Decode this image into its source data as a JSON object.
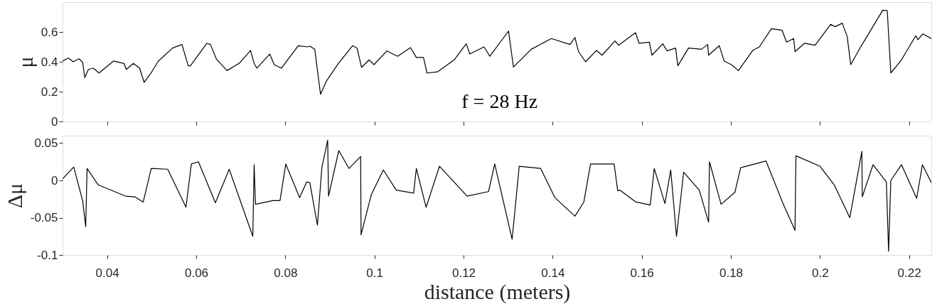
{
  "chart_data": [
    {
      "type": "line",
      "ylabel": "μ",
      "annotations": [
        "f = 28 Hz"
      ],
      "xlim": [
        0.03,
        0.225
      ],
      "xticks": [
        0.04,
        0.06,
        0.08,
        0.1,
        0.12,
        0.14,
        0.16,
        0.18,
        0.2,
        0.22
      ],
      "ylim": [
        0,
        0.8
      ],
      "yticks": [
        0,
        0.2,
        0.4,
        0.6
      ],
      "tick_labels": "y",
      "grid": false,
      "x": [
        0.03,
        0.0313,
        0.0324,
        0.0337,
        0.0345,
        0.035,
        0.0358,
        0.0369,
        0.0382,
        0.0414,
        0.0438,
        0.0443,
        0.0459,
        0.0473,
        0.0483,
        0.0497,
        0.0515,
        0.0547,
        0.0568,
        0.0582,
        0.0587,
        0.0624,
        0.0632,
        0.0645,
        0.0669,
        0.0696,
        0.0722,
        0.073,
        0.0736,
        0.0765,
        0.0775,
        0.0791,
        0.0829,
        0.085,
        0.0855,
        0.0866,
        0.0879,
        0.0892,
        0.0919,
        0.0951,
        0.0961,
        0.0971,
        0.0988,
        0.0999,
        0.1028,
        0.1052,
        0.1081,
        0.1094,
        0.111,
        0.1118,
        0.1142,
        0.1179,
        0.1206,
        0.1214,
        0.1246,
        0.1259,
        0.1301,
        0.1312,
        0.1352,
        0.1397,
        0.1439,
        0.145,
        0.1458,
        0.1474,
        0.1498,
        0.1511,
        0.154,
        0.1548,
        0.1586,
        0.1594,
        0.1617,
        0.1623,
        0.1647,
        0.1657,
        0.1676,
        0.1681,
        0.1705,
        0.1734,
        0.1748,
        0.175,
        0.1774,
        0.1785,
        0.1801,
        0.1817,
        0.1849,
        0.1864,
        0.1891,
        0.1915,
        0.1925,
        0.1941,
        0.1944,
        0.1965,
        0.1989,
        0.2024,
        0.2034,
        0.205,
        0.2061,
        0.2069,
        0.2093,
        0.2141,
        0.2151,
        0.2159,
        0.2183,
        0.2215,
        0.222,
        0.2231,
        0.225
      ],
      "series": [
        {
          "color": "#000000",
          "values": [
            0.405,
            0.425,
            0.4,
            0.42,
            0.397,
            0.294,
            0.349,
            0.357,
            0.325,
            0.405,
            0.389,
            0.349,
            0.389,
            0.357,
            0.262,
            0.318,
            0.405,
            0.492,
            0.516,
            0.373,
            0.373,
            0.524,
            0.516,
            0.42,
            0.341,
            0.389,
            0.476,
            0.389,
            0.357,
            0.452,
            0.381,
            0.357,
            0.508,
            0.5,
            0.505,
            0.484,
            0.182,
            0.27,
            0.389,
            0.508,
            0.492,
            0.362,
            0.413,
            0.381,
            0.473,
            0.437,
            0.495,
            0.429,
            0.429,
            0.325,
            0.333,
            0.413,
            0.521,
            0.452,
            0.5,
            0.437,
            0.606,
            0.365,
            0.484,
            0.556,
            0.516,
            0.563,
            0.468,
            0.4,
            0.476,
            0.444,
            0.54,
            0.511,
            0.595,
            0.524,
            0.532,
            0.444,
            0.521,
            0.473,
            0.492,
            0.373,
            0.492,
            0.484,
            0.516,
            0.444,
            0.508,
            0.405,
            0.381,
            0.341,
            0.476,
            0.5,
            0.622,
            0.611,
            0.532,
            0.556,
            0.468,
            0.524,
            0.511,
            0.651,
            0.635,
            0.659,
            0.571,
            0.381,
            0.508,
            0.746,
            0.743,
            0.325,
            0.413,
            0.575,
            0.548,
            0.587,
            0.556
          ]
        }
      ]
    },
    {
      "type": "line",
      "xlabel": "distance (meters)",
      "ylabel": "Δμ",
      "xlim": [
        0.03,
        0.225
      ],
      "xticks": [
        0.04,
        0.06,
        0.08,
        0.1,
        0.12,
        0.14,
        0.16,
        0.18,
        0.2,
        0.22
      ],
      "ylim": [
        -0.1,
        0.06
      ],
      "yticks": [
        {
          "value": -0.1,
          "label": "-0.1"
        },
        {
          "value": -0.05,
          "label": "-0.05"
        },
        0,
        0.05
      ],
      "grid": false,
      "x": [
        0.03,
        0.0325,
        0.0345,
        0.0352,
        0.0355,
        0.038,
        0.0441,
        0.0462,
        0.0481,
        0.0499,
        0.0536,
        0.0577,
        0.0589,
        0.0605,
        0.0643,
        0.0674,
        0.0727,
        0.073,
        0.0733,
        0.0772,
        0.0788,
        0.0801,
        0.0832,
        0.0848,
        0.0855,
        0.0872,
        0.0882,
        0.0895,
        0.0897,
        0.092,
        0.0943,
        0.0969,
        0.097,
        0.0993,
        0.102,
        0.1049,
        0.1088,
        0.1094,
        0.1116,
        0.1146,
        0.1208,
        0.1256,
        0.127,
        0.1309,
        0.1325,
        0.1373,
        0.1405,
        0.145,
        0.147,
        0.1485,
        0.1538,
        0.1546,
        0.1551,
        0.1587,
        0.1619,
        0.1628,
        0.1652,
        0.1665,
        0.1678,
        0.1694,
        0.1729,
        0.175,
        0.1752,
        0.1778,
        0.1809,
        0.1822,
        0.1879,
        0.1917,
        0.1944,
        0.1946,
        0.2,
        0.2032,
        0.2067,
        0.2094,
        0.2095,
        0.2119,
        0.2149,
        0.2154,
        0.2159,
        0.2183,
        0.2217,
        0.223,
        0.225
      ],
      "series": [
        {
          "color": "#000000",
          "values": [
            0.002,
            0.018,
            -0.027,
            -0.062,
            0.016,
            -0.006,
            -0.021,
            -0.022,
            -0.029,
            0.016,
            0.015,
            -0.036,
            0.022,
            0.025,
            -0.03,
            0.015,
            -0.075,
            0.021,
            -0.032,
            -0.027,
            -0.027,
            0.022,
            -0.023,
            -0.002,
            -0.003,
            -0.06,
            0.017,
            0.054,
            -0.021,
            0.04,
            0.016,
            0.032,
            -0.073,
            -0.019,
            0.014,
            -0.013,
            -0.017,
            0.016,
            -0.036,
            0.019,
            -0.021,
            -0.015,
            0.022,
            -0.079,
            0.019,
            0.016,
            -0.023,
            -0.048,
            -0.029,
            0.022,
            0.022,
            -0.014,
            -0.013,
            -0.029,
            -0.033,
            0.016,
            -0.031,
            0.014,
            -0.075,
            0.011,
            -0.013,
            -0.056,
            0.025,
            -0.032,
            -0.016,
            0.017,
            0.026,
            -0.031,
            -0.067,
            0.033,
            0.019,
            -0.006,
            -0.05,
            0.039,
            -0.022,
            0.021,
            -0.002,
            -0.095,
            0.0,
            0.021,
            -0.024,
            0.021,
            -0.003
          ]
        }
      ]
    }
  ]
}
